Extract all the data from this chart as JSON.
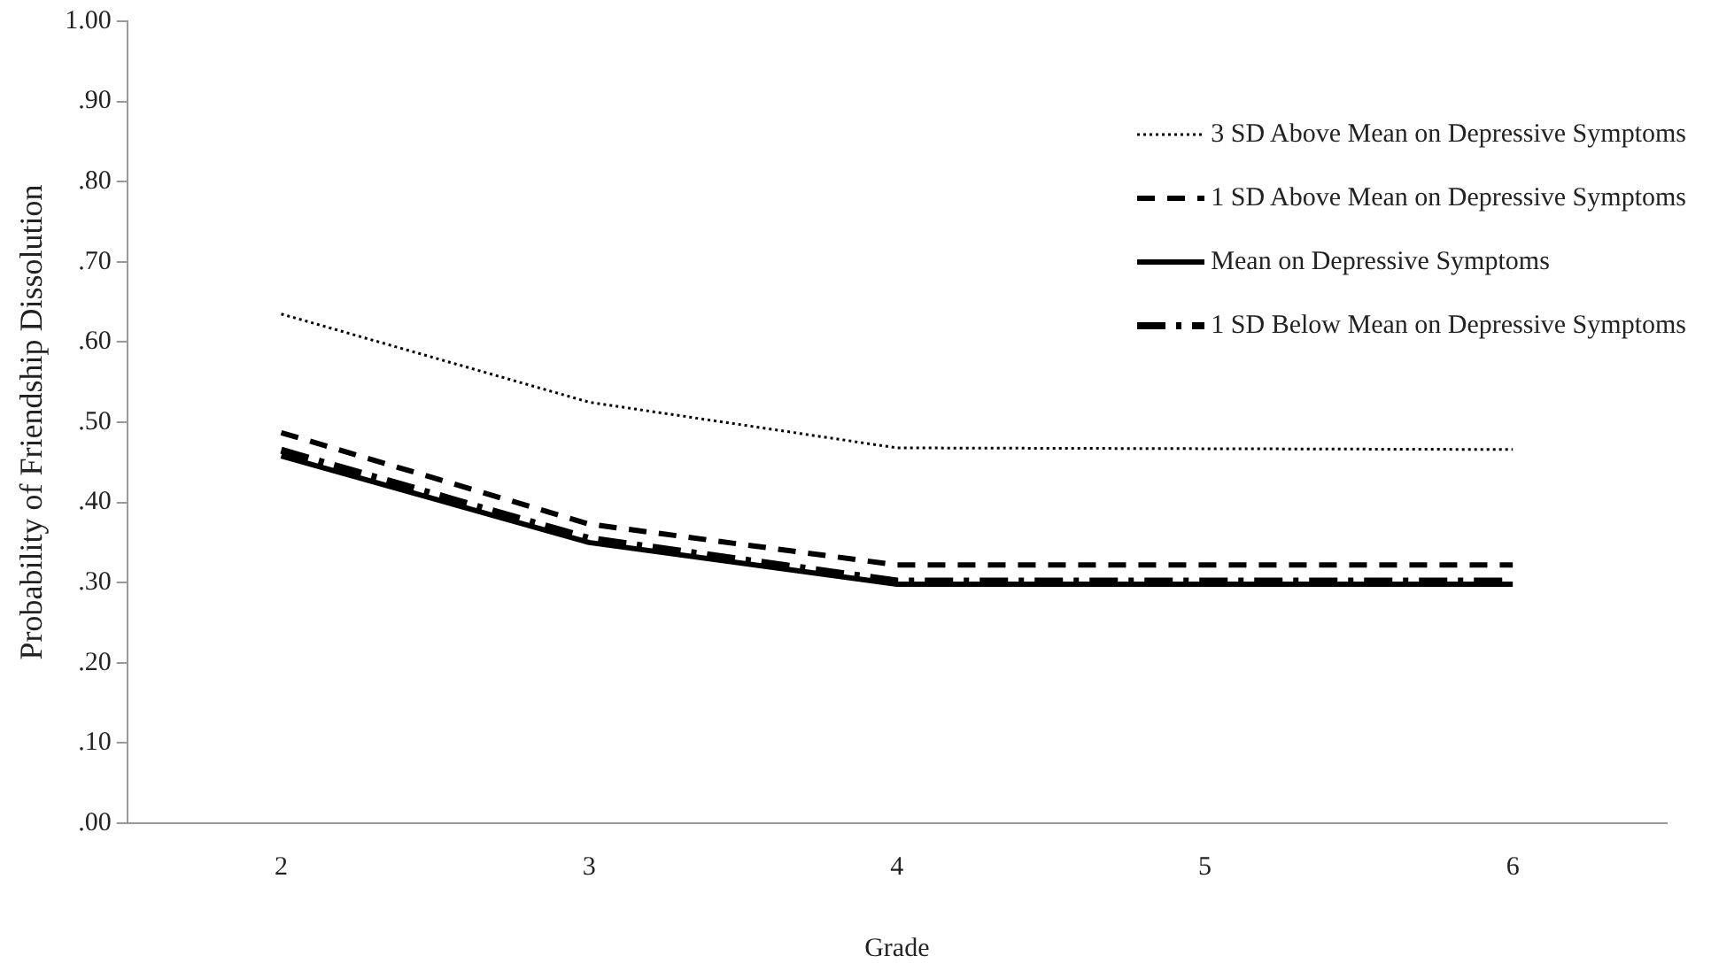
{
  "chart_data": {
    "type": "line",
    "xlabel": "Grade",
    "ylabel": "Probability of Friendship Dissolution",
    "categories": [
      "2",
      "3",
      "4",
      "5",
      "6"
    ],
    "series": [
      {
        "name": "3 SD Above Mean on Depressive Symptoms",
        "color": "#000000",
        "line_style": "dotted",
        "values": [
          0.635,
          0.525,
          0.468,
          0.467,
          0.466
        ]
      },
      {
        "name": "1 SD Above Mean on Depressive Symptoms",
        "color": "#000000",
        "line_style": "dashed",
        "values": [
          0.487,
          0.373,
          0.322,
          0.322,
          0.322
        ]
      },
      {
        "name": "Mean on Depressive Symptoms",
        "color": "#000000",
        "line_style": "solid",
        "values": [
          0.458,
          0.35,
          0.298,
          0.298,
          0.298
        ]
      },
      {
        "name": "1 SD Below Mean on Depressive Symptoms",
        "color": "#000000",
        "line_style": "dashdot",
        "values": [
          0.465,
          0.355,
          0.302,
          0.302,
          0.302
        ]
      }
    ],
    "ylim": [
      0,
      1
    ],
    "yticks": [
      {
        "value": 0,
        "label": ".00"
      },
      {
        "value": 0.1,
        "label": ".10"
      },
      {
        "value": 0.2,
        "label": ".20"
      },
      {
        "value": 0.3,
        "label": ".30"
      },
      {
        "value": 0.4,
        "label": ".40"
      },
      {
        "value": 0.5,
        "label": ".50"
      },
      {
        "value": 0.6,
        "label": ".60"
      },
      {
        "value": 0.7,
        "label": ".70"
      },
      {
        "value": 0.8,
        "label": ".80"
      },
      {
        "value": 0.9,
        "label": ".90"
      },
      {
        "value": 1,
        "label": "1.00"
      }
    ],
    "grid": false,
    "legend": "top right",
    "marker": "none"
  }
}
